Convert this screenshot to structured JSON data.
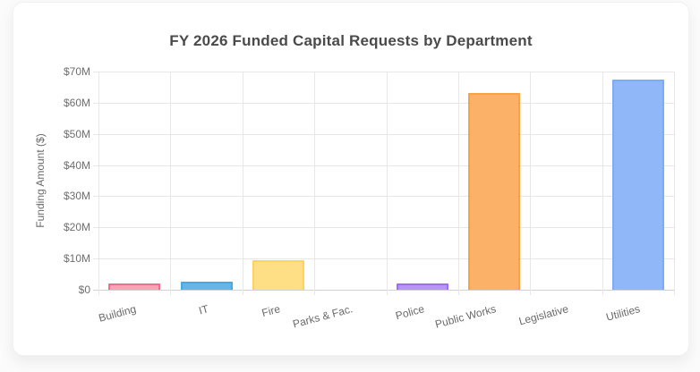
{
  "page": {
    "card_bg": "#ffffff",
    "page_bg": "#fbfbfc",
    "text_color": "#4a4a4a",
    "axis_text_color": "#6a6a6a",
    "grid_color": "#e7e7ea"
  },
  "chart_data": {
    "type": "bar",
    "title": "FY 2026 Funded Capital Requests by Department",
    "xlabel": "",
    "ylabel": "Funding Amount ($)",
    "value_unit": "USD millions",
    "categories": [
      "Building",
      "IT",
      "Fire",
      "Parks & Fac.",
      "Police",
      "Public Works",
      "Legislative",
      "Utilities"
    ],
    "values": [
      2.1,
      2.6,
      9.6,
      0,
      2.1,
      63,
      0,
      67.5
    ],
    "ylim": [
      0,
      70
    ],
    "ytick_step": 10,
    "ytick_labels": [
      "$0",
      "$10M",
      "$20M",
      "$30M",
      "$40M",
      "$50M",
      "$60M",
      "$70M"
    ],
    "grid": true,
    "legend": "none",
    "bars": [
      {
        "label": "Building",
        "value": 2.1,
        "fill": "#f9a3b6",
        "border": "#f06d8d"
      },
      {
        "label": "IT",
        "value": 2.6,
        "fill": "#66b5e9",
        "border": "#4aa7e0"
      },
      {
        "label": "Fire",
        "value": 9.6,
        "fill": "#ffdf85",
        "border": "#fdd35e"
      },
      {
        "label": "Parks & Fac.",
        "value": 0,
        "fill": null,
        "border": null
      },
      {
        "label": "Police",
        "value": 2.1,
        "fill": "#b896f6",
        "border": "#9c70f2"
      },
      {
        "label": "Public Works",
        "value": 63,
        "fill": "#fcb168",
        "border": "#faa146"
      },
      {
        "label": "Legislative",
        "value": 0,
        "fill": null,
        "border": null
      },
      {
        "label": "Utilities",
        "value": 67.5,
        "fill": "#90b8f8",
        "border": "#7dabf6"
      }
    ]
  }
}
